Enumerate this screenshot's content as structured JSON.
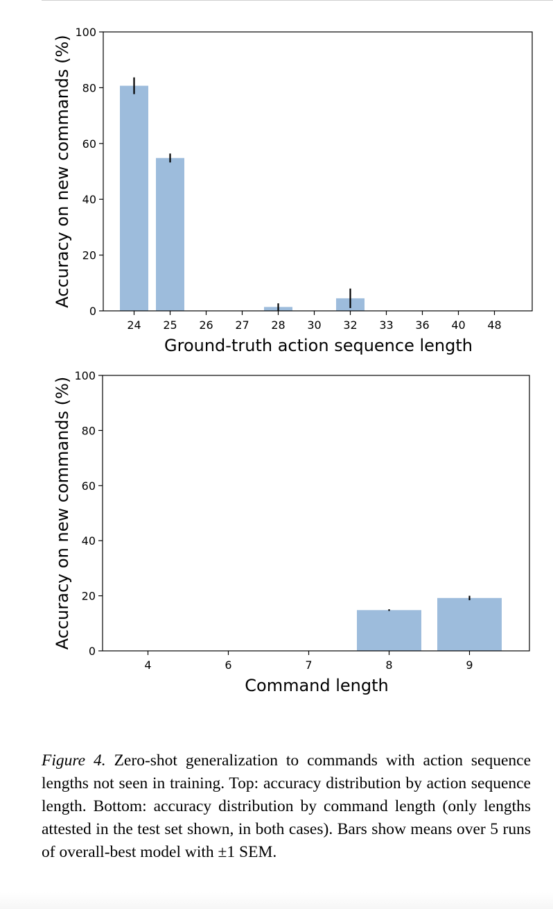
{
  "chart_data": [
    {
      "type": "bar",
      "categories": [
        "24",
        "25",
        "26",
        "27",
        "28",
        "30",
        "32",
        "33",
        "36",
        "40",
        "48"
      ],
      "values": [
        80.7,
        54.8,
        0,
        0,
        1.4,
        0,
        4.5,
        0,
        0,
        0,
        0
      ],
      "errors": [
        3.0,
        1.6,
        0,
        0,
        1.3,
        0,
        3.5,
        0,
        0,
        0,
        0
      ],
      "title": "",
      "xlabel": "Ground-truth action sequence length",
      "ylabel": "Accuracy on new commands (%)",
      "ylim": [
        0,
        100
      ],
      "yticks": [
        0,
        20,
        40,
        60,
        80,
        100
      ],
      "bar_color": "#9dbcdc",
      "error_color": "#000000",
      "grid": false
    },
    {
      "type": "bar",
      "categories": [
        "4",
        "6",
        "7",
        "8",
        "9"
      ],
      "values": [
        0,
        0,
        0,
        14.8,
        19.2
      ],
      "errors": [
        0,
        0,
        0,
        0.3,
        0.8
      ],
      "title": "",
      "xlabel": "Command length",
      "ylabel": "Accuracy on new commands (%)",
      "ylim": [
        0,
        100
      ],
      "yticks": [
        0,
        20,
        40,
        60,
        80,
        100
      ],
      "bar_color": "#9dbcdc",
      "error_color": "#000000",
      "grid": false
    }
  ],
  "caption": {
    "label": "Figure 4.",
    "text": "Zero-shot generalization to commands with action sequence lengths not seen in training. Top: accuracy distribution by action sequence length. Bottom: accuracy distribution by command length (only lengths attested in the test set shown, in both cases). Bars show means over 5 runs of overall-best model with ±1 SEM."
  }
}
